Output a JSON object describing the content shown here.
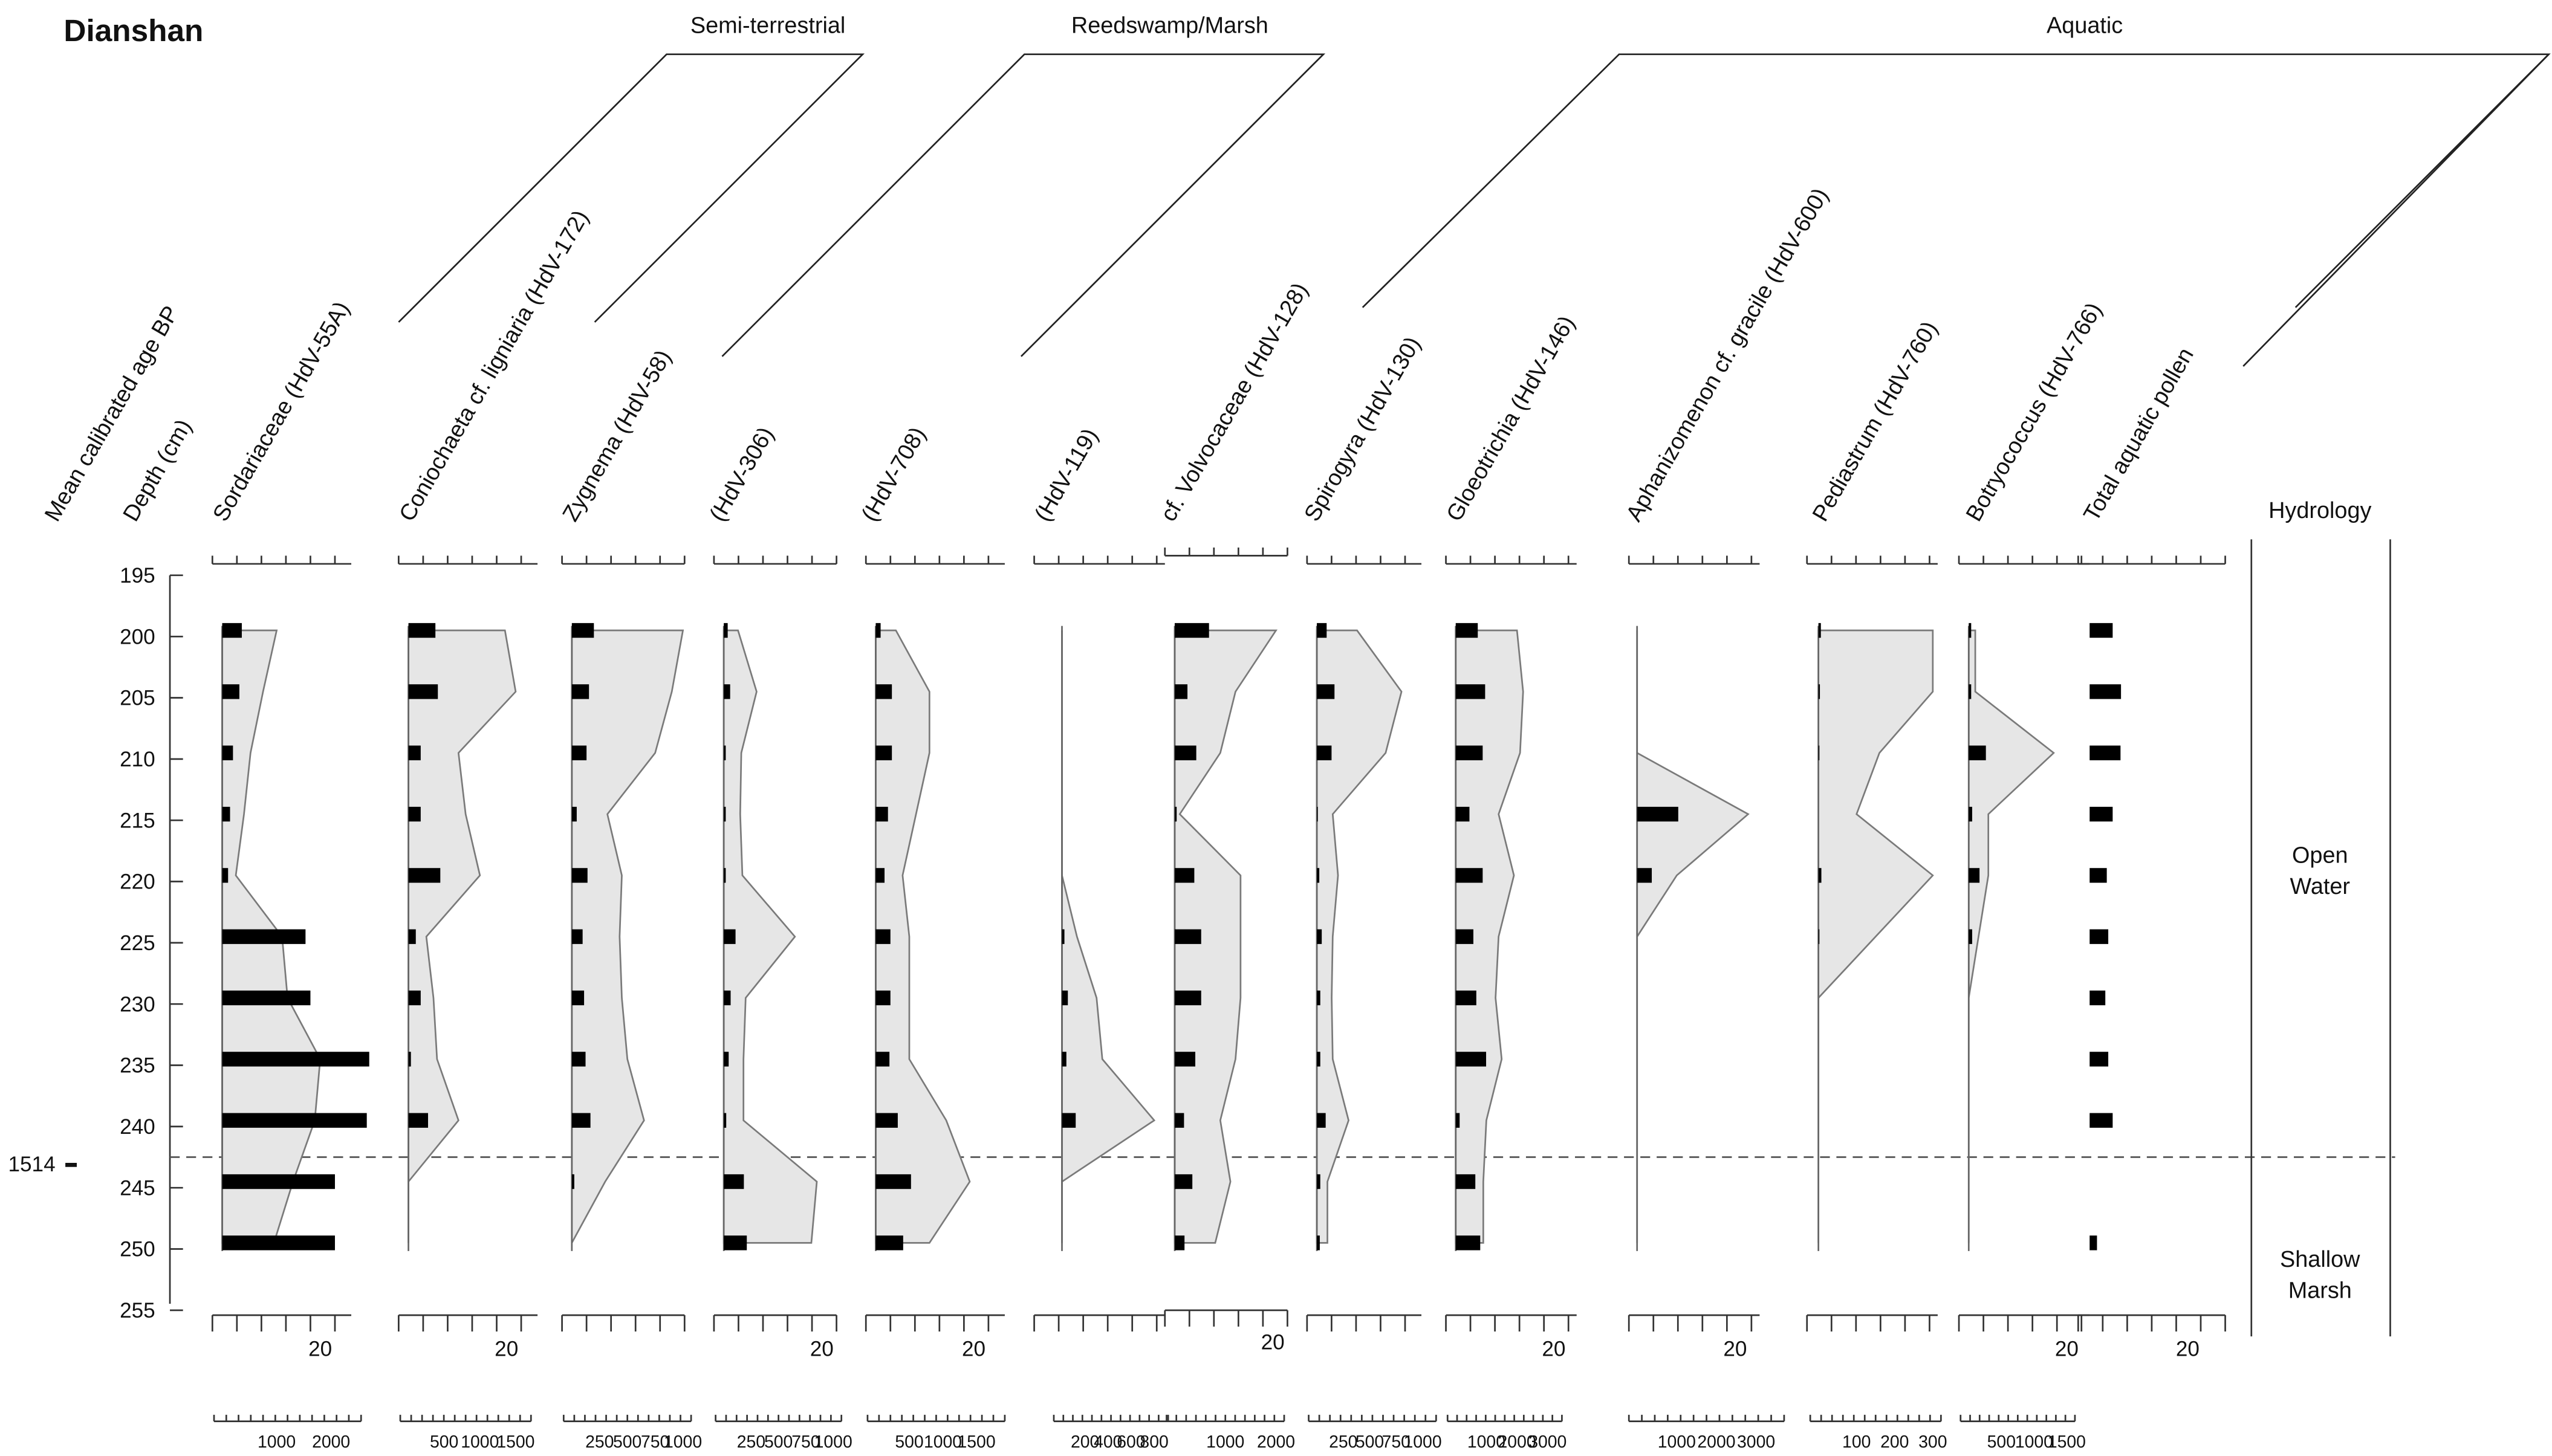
{
  "chart_data": {
    "type": "stratigraphic-diagram",
    "title": "Dianshan",
    "depth_axis": {
      "label": "Depth (cm)",
      "ticks": [
        195,
        200,
        205,
        210,
        215,
        220,
        225,
        230,
        235,
        240,
        245,
        250,
        255
      ],
      "range": [
        195,
        255
      ]
    },
    "age_axis": {
      "label": "Mean calibrated age BP",
      "markers": [
        {
          "age": "1514",
          "depth": 243
        }
      ]
    },
    "zone_boundary_depth": 242.5,
    "groups": [
      {
        "name": "Semi-terrestrial",
        "first_col": 0,
        "last_col": 2
      },
      {
        "name": "Reedswamp/Marsh",
        "first_col": 3,
        "last_col": 5
      },
      {
        "name": "Aquatic",
        "first_col": 6,
        "last_col": 12
      }
    ],
    "depths": [
      199.5,
      204.5,
      209.5,
      214.5,
      219.5,
      224.5,
      229.5,
      234.5,
      239.5,
      244.5,
      249.5
    ],
    "columns": [
      {
        "name": "Sordariaceae (HdV-55A)",
        "pct_label": "20",
        "conc_ticks": [
          "1000",
          "2000"
        ],
        "conc_max": 2400,
        "bars": [
          0.4,
          0.35,
          0.22,
          0.16,
          0.12,
          1.7,
          1.8,
          3.0,
          2.95,
          2.3,
          2.3
        ],
        "conc": [
          1000,
          750,
          520,
          400,
          250,
          1100,
          1200,
          1800,
          1700,
          1300,
          950
        ]
      },
      {
        "name": "Coniochaeta cf. ligniaria (HdV-172)",
        "pct_label": "20",
        "conc_ticks": [
          "500",
          "1000",
          "1500"
        ],
        "conc_max": 1600,
        "bars": [
          0.55,
          0.6,
          0.25,
          0.25,
          0.65,
          0.15,
          0.25,
          0.05,
          0.4,
          0,
          0
        ],
        "conc": [
          1350,
          1500,
          700,
          800,
          1000,
          250,
          350,
          400,
          700,
          0,
          0
        ]
      },
      {
        "name": "Zygnema (HdV-58)",
        "pct_label": "",
        "conc_ticks": [
          "250",
          "500",
          "750",
          "1000"
        ],
        "conc_max": 1000,
        "bars": [
          0.45,
          0.35,
          0.3,
          0.1,
          0.32,
          0.22,
          0.25,
          0.28,
          0.38,
          0.05,
          0
        ],
        "conc": [
          1000,
          900,
          750,
          320,
          450,
          430,
          450,
          500,
          650,
          300,
          0
        ]
      },
      {
        "name": "(HdV-306)",
        "pct_label": "20",
        "conc_ticks": [
          "250",
          "500",
          "750",
          "1000"
        ],
        "conc_max": 1000,
        "bars": [
          0.08,
          0.13,
          0.04,
          0.04,
          0.04,
          0.24,
          0.14,
          0.1,
          0.05,
          0.41,
          0.47
        ],
        "conc": [
          130,
          300,
          160,
          150,
          170,
          650,
          200,
          180,
          180,
          850,
          800
        ]
      },
      {
        "name": "(HdV-708)",
        "pct_label": "20",
        "conc_ticks": [
          "500",
          "1000",
          "1500"
        ],
        "conc_max": 1800,
        "bars": [
          0.1,
          0.33,
          0.33,
          0.25,
          0.18,
          0.3,
          0.3,
          0.28,
          0.45,
          0.72,
          0.56
        ],
        "conc": [
          300,
          800,
          800,
          600,
          400,
          500,
          500,
          500,
          1050,
          1400,
          800
        ]
      },
      {
        "name": "(HdV-119)",
        "pct_label": "",
        "conc_ticks": [
          "200",
          "400",
          "600",
          "800"
        ],
        "conc_max": 850,
        "bars": [
          0,
          0,
          0,
          0,
          0,
          0.05,
          0.12,
          0.09,
          0.28,
          0,
          0
        ],
        "conc": [
          0,
          0,
          0,
          0,
          0,
          130,
          300,
          350,
          800,
          0,
          0
        ]
      },
      {
        "name": "cf. Volvocaceae (HdV-128)",
        "pct_label": "20",
        "conc_ticks": [
          "1000",
          "2000"
        ],
        "conc_max": 2000,
        "bars": [
          0.7,
          0.26,
          0.44,
          0.04,
          0.4,
          0.54,
          0.54,
          0.42,
          0.19,
          0.36,
          0.2
        ],
        "conc": [
          2000,
          1200,
          900,
          100,
          1300,
          1300,
          1300,
          1200,
          900,
          1100,
          800
        ]
      },
      {
        "name": "Spirogyra (HdV-130)",
        "pct_label": "",
        "conc_ticks": [
          "250",
          "500",
          "750",
          "1000"
        ],
        "conc_max": 1050,
        "bars": [
          0.2,
          0.36,
          0.3,
          0.02,
          0.05,
          0.1,
          0.07,
          0.07,
          0.18,
          0.07,
          0.06
        ],
        "conc": [
          380,
          800,
          650,
          150,
          200,
          150,
          140,
          150,
          300,
          100,
          100
        ]
      },
      {
        "name": "Gloeotrichia (HdV-146)",
        "pct_label": "20",
        "conc_ticks": [
          "1000",
          "2000",
          "3000"
        ],
        "conc_max": 3200,
        "bars": [
          0.45,
          0.6,
          0.55,
          0.28,
          0.55,
          0.36,
          0.42,
          0.62,
          0.08,
          0.4,
          0.5
        ],
        "conc": [
          2000,
          2200,
          2100,
          1400,
          1900,
          1400,
          1300,
          1500,
          1000,
          900,
          900
        ]
      },
      {
        "name": "Aphanizomenon cf. gracile (HdV-600)",
        "pct_label": "20",
        "conc_ticks": [
          "1000",
          "2000",
          "3000"
        ],
        "conc_max": 3500,
        "bars": [
          0,
          0,
          0,
          0.84,
          0.3,
          0,
          0,
          0,
          0,
          0,
          0
        ],
        "conc": [
          0,
          0,
          0,
          2800,
          1000,
          0,
          0,
          0,
          0,
          0,
          0
        ]
      },
      {
        "name": "Pediastrum (HdV-760)",
        "pct_label": "",
        "conc_ticks": [
          "100",
          "200",
          "300"
        ],
        "conc_max": 300,
        "bars": [
          0.05,
          0.03,
          0.02,
          0,
          0.06,
          0.02,
          0,
          0,
          0,
          0,
          0
        ],
        "conc": [
          300,
          300,
          160,
          100,
          300,
          150,
          0,
          0,
          0,
          0,
          0
        ]
      },
      {
        "name": "Botryococcus (HdV-766)",
        "pct_label": "20",
        "conc_ticks": [
          "500",
          "1000",
          "1500"
        ],
        "conc_max": 1500,
        "bars": [
          0.05,
          0.05,
          0.35,
          0.07,
          0.22,
          0.07,
          0,
          0,
          0,
          0,
          0
        ],
        "conc": [
          100,
          100,
          1300,
          300,
          300,
          150,
          0,
          0,
          0,
          0,
          0
        ]
      },
      {
        "name": "Total aquatic pollen",
        "pct_label": "20",
        "conc_ticks": [],
        "conc_max": 1,
        "bars": [
          0.47,
          0.64,
          0.63,
          0.47,
          0.35,
          0.38,
          0.32,
          0.38,
          0.47,
          0,
          0.15
        ],
        "conc": []
      }
    ],
    "hydrology": {
      "label": "Hydrology",
      "zones": [
        {
          "name": "Open\nWater",
          "depth": 219
        },
        {
          "name": "Shallow\nMarsh",
          "depth": 252
        }
      ]
    }
  }
}
